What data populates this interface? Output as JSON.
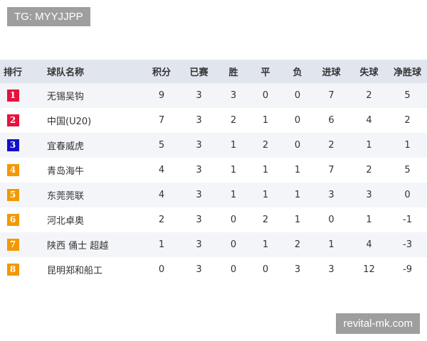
{
  "tag": "TG: MYYJJPP",
  "watermark": "revital-mk.com",
  "headers": [
    "排行",
    "球队名称",
    "积分",
    "已赛",
    "胜",
    "平",
    "负",
    "进球",
    "失球",
    "净胜球"
  ],
  "rows": [
    {
      "rank": "1",
      "team": "无锡吴钩",
      "pts": "9",
      "played": "3",
      "w": "3",
      "d": "0",
      "l": "0",
      "gf": "7",
      "ga": "2",
      "gd": "5",
      "color": "#e8103f"
    },
    {
      "rank": "2",
      "team": "中国(U20)",
      "pts": "7",
      "played": "3",
      "w": "2",
      "d": "1",
      "l": "0",
      "gf": "6",
      "ga": "4",
      "gd": "2",
      "color": "#e8103f"
    },
    {
      "rank": "3",
      "team": "宜春威虎",
      "pts": "5",
      "played": "3",
      "w": "1",
      "d": "2",
      "l": "0",
      "gf": "2",
      "ga": "1",
      "gd": "1",
      "color": "#1010c8"
    },
    {
      "rank": "4",
      "team": "青岛海牛",
      "pts": "4",
      "played": "3",
      "w": "1",
      "d": "1",
      "l": "1",
      "gf": "7",
      "ga": "2",
      "gd": "5",
      "color": "#f39800"
    },
    {
      "rank": "5",
      "team": "东莞莞联",
      "pts": "4",
      "played": "3",
      "w": "1",
      "d": "1",
      "l": "1",
      "gf": "3",
      "ga": "3",
      "gd": "0",
      "color": "#f39800"
    },
    {
      "rank": "6",
      "team": "河北卓奥",
      "pts": "2",
      "played": "3",
      "w": "0",
      "d": "2",
      "l": "1",
      "gf": "0",
      "ga": "1",
      "gd": "-1",
      "color": "#f39800"
    },
    {
      "rank": "7",
      "team": "陕西 俑士 超越",
      "pts": "1",
      "played": "3",
      "w": "0",
      "d": "1",
      "l": "2",
      "gf": "1",
      "ga": "4",
      "gd": "-3",
      "color": "#f39800"
    },
    {
      "rank": "8",
      "team": "昆明郑和船工",
      "pts": "0",
      "played": "3",
      "w": "0",
      "d": "0",
      "l": "3",
      "gf": "3",
      "ga": "12",
      "gd": "-9",
      "color": "#f39800"
    }
  ]
}
